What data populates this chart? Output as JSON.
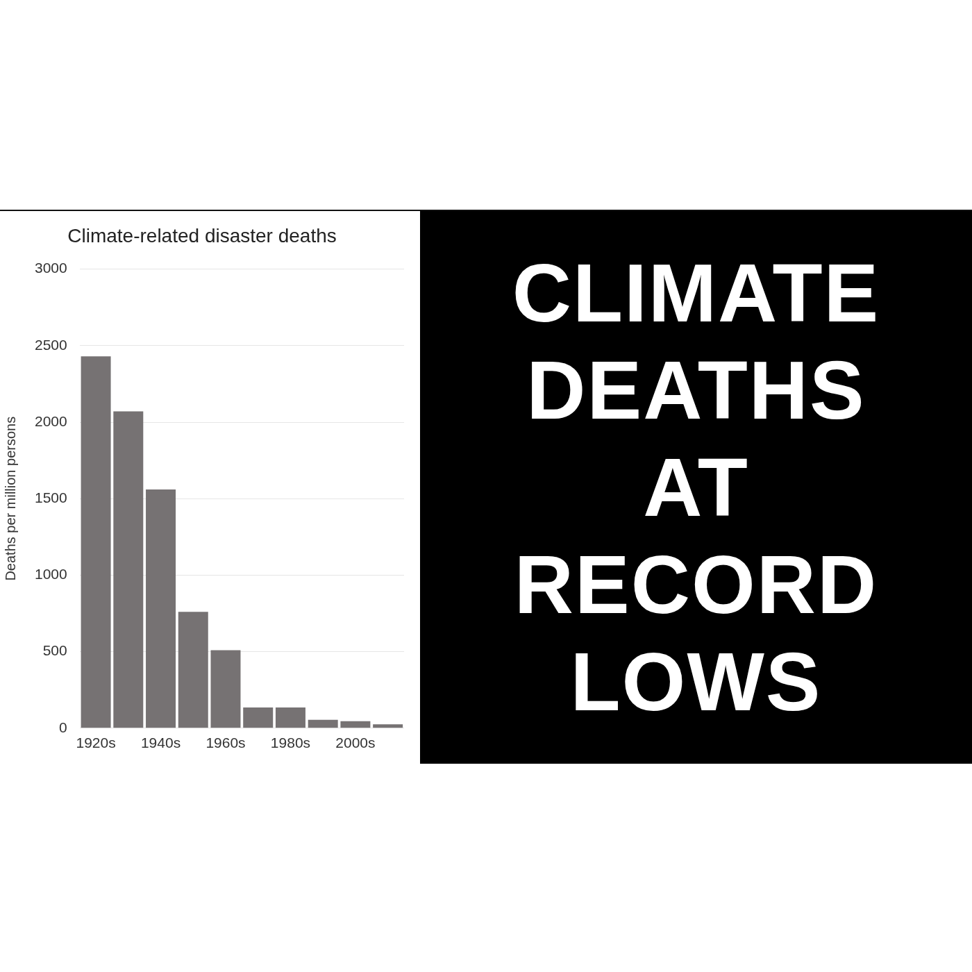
{
  "chart_data": [
    {
      "type": "bar",
      "title": "Climate-related disaster deaths",
      "ylabel": "Deaths per million persons",
      "categories": [
        "1920s",
        null,
        "1940s",
        null,
        "1960s",
        null,
        "1980s",
        null,
        "2000s",
        null
      ],
      "values": [
        2430,
        2070,
        1560,
        760,
        510,
        135,
        135,
        55,
        46,
        25
      ],
      "color": "#767273",
      "ylim": [
        0,
        3000
      ],
      "yticks": [
        0,
        500,
        1000,
        1500,
        2000,
        2500,
        3000
      ],
      "grid": "y"
    },
    {
      "type": "other",
      "title": "CLIMATE DEATHS AT RECORD LOWS"
    }
  ]
}
